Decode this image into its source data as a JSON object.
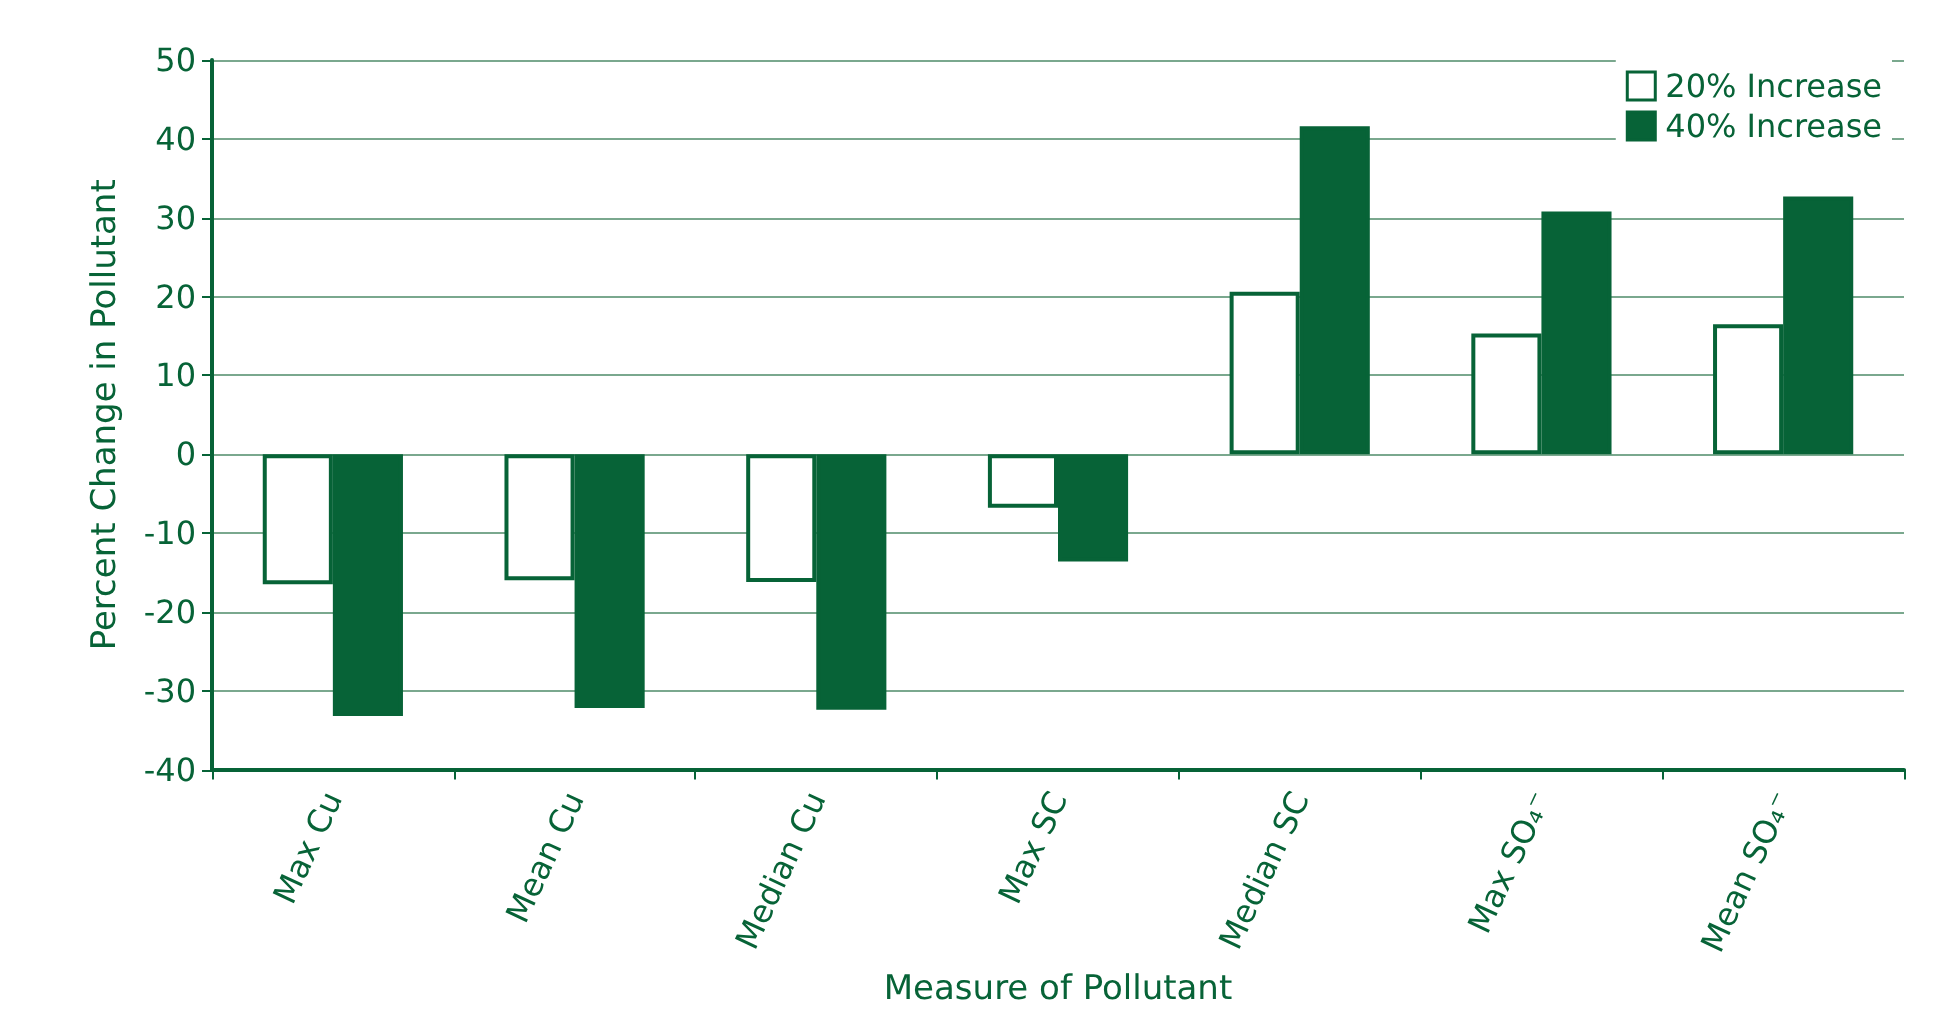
{
  "chart_data": {
    "type": "bar",
    "xlabel": "Measure of Pollutant",
    "ylabel": "Percent Change in Pollutant",
    "categories": [
      "Max Cu",
      "Mean Cu",
      "Median Cu",
      "Max SC",
      "Median SC",
      "Max SO₄⁻",
      "Mean SO₄⁻"
    ],
    "series": [
      {
        "name": "20% Increase",
        "color": "#ffffff",
        "values": [
          -16.5,
          -16,
          -16.2,
          -6.8,
          20.6,
          15.3,
          16.5
        ]
      },
      {
        "name": "40% Increase",
        "color": "#076337",
        "values": [
          -33.2,
          -32.2,
          -32.4,
          -13.6,
          41.6,
          30.8,
          32.7
        ]
      }
    ],
    "ylim": [
      -40,
      50
    ],
    "yticks": [
      -40,
      -30,
      -20,
      -10,
      0,
      10,
      20,
      30,
      40,
      50
    ],
    "grid": "y",
    "legend": "top right"
  }
}
